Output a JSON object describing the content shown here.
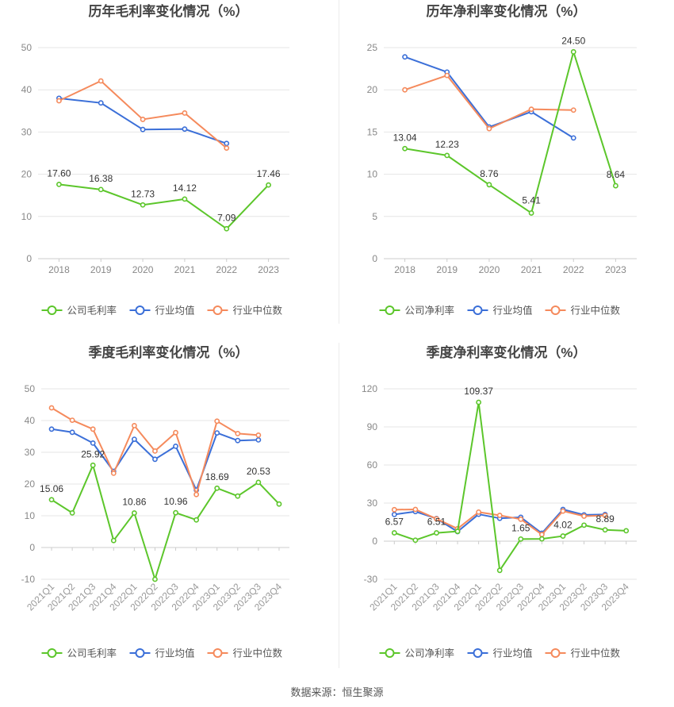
{
  "colors": {
    "company": "#5cc62b",
    "industry_avg": "#3b6fd8",
    "industry_median": "#f58a5c",
    "grid": "#e6e6e6",
    "axis_text": "#888888",
    "title_text": "#444444"
  },
  "legend_labels": {
    "gross_company": "公司毛利率",
    "net_company": "公司净利率",
    "avg": "行业均值",
    "median": "行业中位数"
  },
  "footer": {
    "source_label": "数据来源：",
    "source_value": "恒生聚源"
  },
  "chart_data": [
    {
      "id": "annual-gross",
      "type": "line",
      "title": "历年毛利率变化情况（%）",
      "categories": [
        "2018",
        "2019",
        "2020",
        "2021",
        "2022",
        "2023"
      ],
      "ylim": [
        0,
        50
      ],
      "yticks": [
        0,
        10,
        20,
        30,
        40,
        50
      ],
      "grid": true,
      "legend_position": "bottom",
      "series": [
        {
          "name": "公司毛利率",
          "role": "company",
          "values": [
            17.6,
            16.38,
            12.73,
            14.12,
            7.09,
            17.46
          ],
          "labels": [
            "17.60",
            "16.38",
            "12.73",
            "14.12",
            "7.09",
            "17.46"
          ]
        },
        {
          "name": "行业均值",
          "role": "avg",
          "values": [
            38.0,
            36.9,
            30.6,
            30.7,
            27.3,
            null
          ]
        },
        {
          "name": "行业中位数",
          "role": "median",
          "values": [
            37.4,
            42.1,
            33.0,
            34.5,
            26.2,
            null
          ]
        }
      ]
    },
    {
      "id": "annual-net",
      "type": "line",
      "title": "历年净利率变化情况（%）",
      "categories": [
        "2018",
        "2019",
        "2020",
        "2021",
        "2022",
        "2023"
      ],
      "ylim": [
        0,
        25
      ],
      "yticks": [
        0,
        5,
        10,
        15,
        20,
        25
      ],
      "grid": true,
      "legend_position": "bottom",
      "series": [
        {
          "name": "公司净利率",
          "role": "company",
          "values": [
            13.04,
            12.23,
            8.76,
            5.41,
            24.5,
            8.64
          ],
          "labels": [
            "13.04",
            "12.23",
            "8.76",
            "5.41",
            "24.50",
            "8.64"
          ]
        },
        {
          "name": "行业均值",
          "role": "avg",
          "values": [
            23.9,
            22.1,
            15.6,
            17.4,
            14.3,
            null
          ]
        },
        {
          "name": "行业中位数",
          "role": "median",
          "values": [
            20.0,
            21.7,
            15.4,
            17.7,
            17.6,
            null
          ]
        }
      ]
    },
    {
      "id": "quarterly-gross",
      "type": "line",
      "title": "季度毛利率变化情况（%）",
      "categories": [
        "2021Q1",
        "2021Q2",
        "2021Q3",
        "2021Q4",
        "2022Q1",
        "2022Q2",
        "2022Q3",
        "2022Q4",
        "2023Q1",
        "2023Q2",
        "2023Q3",
        "2023Q4"
      ],
      "ylim": [
        -10,
        50
      ],
      "yticks": [
        -10,
        0,
        10,
        20,
        30,
        40,
        50
      ],
      "grid": true,
      "legend_position": "bottom",
      "series": [
        {
          "name": "公司毛利率",
          "role": "company",
          "values": [
            15.06,
            10.9,
            25.92,
            2.2,
            10.86,
            -10.0,
            10.96,
            8.7,
            18.69,
            16.2,
            20.53,
            13.7
          ],
          "labels": [
            "15.06",
            null,
            "25.92",
            null,
            "10.86",
            null,
            "10.96",
            null,
            "18.69",
            null,
            "20.53",
            null
          ]
        },
        {
          "name": "行业均值",
          "role": "avg",
          "values": [
            37.3,
            36.3,
            32.9,
            24.0,
            34.1,
            27.8,
            31.9,
            18.1,
            36.1,
            33.7,
            33.9,
            null
          ]
        },
        {
          "name": "行业中位数",
          "role": "median",
          "values": [
            44.0,
            40.1,
            37.3,
            23.4,
            38.4,
            30.4,
            36.2,
            16.7,
            39.8,
            35.9,
            35.4,
            null
          ]
        }
      ]
    },
    {
      "id": "quarterly-net",
      "type": "line",
      "title": "季度净利率变化情况（%）",
      "categories": [
        "2021Q1",
        "2021Q2",
        "2021Q3",
        "2021Q4",
        "2022Q1",
        "2022Q2",
        "2022Q3",
        "2022Q4",
        "2023Q1",
        "2023Q2",
        "2023Q3",
        "2023Q4"
      ],
      "ylim": [
        -30,
        120
      ],
      "yticks": [
        -30,
        0,
        30,
        60,
        90,
        120
      ],
      "grid": true,
      "legend_position": "bottom",
      "series": [
        {
          "name": "公司净利率",
          "role": "company",
          "values": [
            6.57,
            0.8,
            6.51,
            7.7,
            109.37,
            -23.0,
            1.65,
            1.8,
            4.02,
            12.6,
            8.89,
            8.2
          ],
          "labels": [
            "6.57",
            null,
            "6.51",
            null,
            "109.37",
            null,
            "1.65",
            null,
            "4.02",
            null,
            "8.89",
            null
          ]
        },
        {
          "name": "行业均值",
          "role": "avg",
          "values": [
            21.0,
            23.3,
            17.8,
            7.5,
            21.2,
            18.0,
            18.8,
            6.2,
            25.0,
            20.7,
            21.0,
            null
          ]
        },
        {
          "name": "行业中位数",
          "role": "median",
          "values": [
            24.8,
            25.0,
            17.6,
            9.8,
            22.9,
            20.3,
            17.3,
            5.2,
            23.7,
            19.7,
            20.2,
            null
          ]
        }
      ]
    }
  ]
}
